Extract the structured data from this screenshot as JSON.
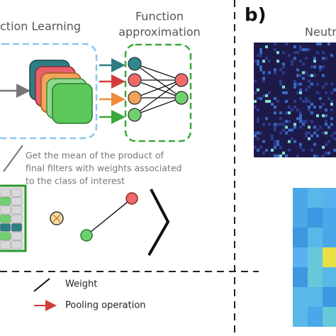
{
  "panel_a": {
    "feature_learning_label": "ction Learning",
    "function_approximation_label": [
      "Function",
      "approximation"
    ],
    "caption": [
      "Get the mean of the product of",
      "final filters with weights associated",
      "to the class of interest"
    ],
    "legend": [
      {
        "label": "Weight"
      },
      {
        "label": "Pooling operation"
      }
    ]
  },
  "panel_b": {
    "label": "b)",
    "title": "Neutr"
  }
}
